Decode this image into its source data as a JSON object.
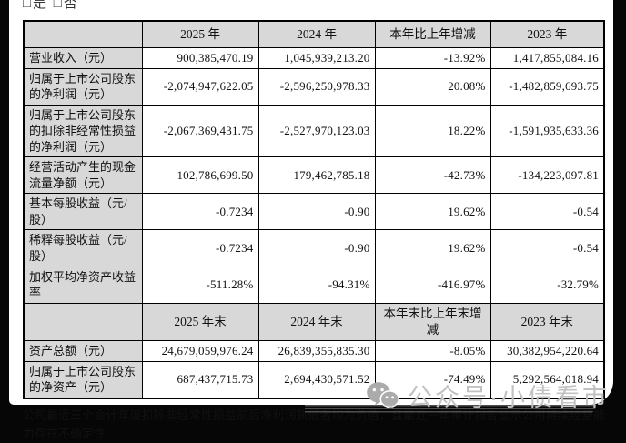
{
  "page": {
    "clipped_heading": "□是 □否",
    "footnote": "公司最近三个会计年度扣除非经常性损益前后净利润孰低者均为负值，且最近一年审计报告显示公司持续经营能力存在不确定性",
    "watermark": {
      "icon": "wechat-icon",
      "text": "公众号·小债看市"
    }
  },
  "colors": {
    "header_bg": "#d8d8d8",
    "table_border": "#000000",
    "frame_bg": "#060606",
    "watermark_gray": "#c2c2c2"
  },
  "table": {
    "sections": [
      {
        "header": [
          "",
          "2025 年",
          "2024 年",
          "本年比上年增减",
          "2023 年"
        ],
        "rows": [
          [
            "营业收入（元）",
            "900,385,470.19",
            "1,045,939,213.20",
            "-13.92%",
            "1,417,855,084.16"
          ],
          [
            "归属于上市公司股东的净利润（元）",
            "-2,074,947,622.05",
            "-2,596,250,978.33",
            "20.08%",
            "-1,482,859,693.75"
          ],
          [
            "归属于上市公司股东的扣除非经常性损益的净利润（元）",
            "-2,067,369,431.75",
            "-2,527,970,123.03",
            "18.22%",
            "-1,591,935,633.36"
          ],
          [
            "经营活动产生的现金流量净额（元）",
            "102,786,699.50",
            "179,462,785.18",
            "-42.73%",
            "-134,223,097.81"
          ],
          [
            "基本每股收益（元/股）",
            "-0.7234",
            "-0.90",
            "19.62%",
            "-0.54"
          ],
          [
            "稀释每股收益（元/股）",
            "-0.7234",
            "-0.90",
            "19.62%",
            "-0.54"
          ],
          [
            "加权平均净资产收益率",
            "-511.28%",
            "-94.31%",
            "-416.97%",
            "-32.79%"
          ]
        ]
      },
      {
        "header": [
          "",
          "2025 年末",
          "2024 年末",
          "本年末比上年末增减",
          "2023 年末"
        ],
        "rows": [
          [
            "资产总额（元）",
            "24,679,059,976.24",
            "26,839,355,835.30",
            "-8.05%",
            "30,382,954,220.64"
          ],
          [
            "归属于上市公司股东的净资产（元）",
            "687,437,715.73",
            "2,694,430,571.52",
            "-74.49%",
            "5,292,564,018.94"
          ]
        ]
      }
    ]
  }
}
